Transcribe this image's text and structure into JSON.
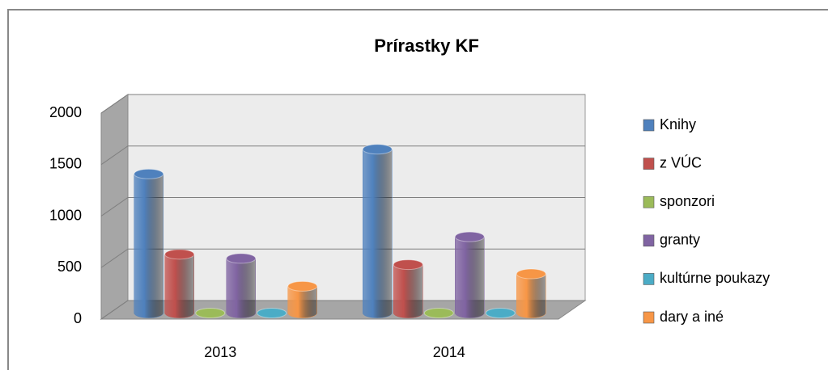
{
  "chart_data": {
    "type": "bar3d",
    "title": "Prírastky KF",
    "categories": [
      "2013",
      "2014"
    ],
    "series": [
      {
        "name": "Knihy",
        "color": "#4f81bd",
        "values": [
          1350,
          1590
        ]
      },
      {
        "name": "z VÚC",
        "color": "#c0504d",
        "values": [
          570,
          470
        ]
      },
      {
        "name": "sponzori",
        "color": "#9bbb59",
        "values": [
          0,
          0
        ]
      },
      {
        "name": "granty",
        "color": "#8064a2",
        "values": [
          530,
          740
        ]
      },
      {
        "name": "kultúrne poukazy",
        "color": "#4bacc6",
        "values": [
          0,
          0
        ]
      },
      {
        "name": "dary a iné",
        "color": "#f79646",
        "values": [
          260,
          380
        ]
      }
    ],
    "ylim": [
      0,
      2000
    ],
    "yticks": [
      0,
      500,
      1000,
      1500,
      2000
    ],
    "grid": true,
    "legend": "right"
  }
}
